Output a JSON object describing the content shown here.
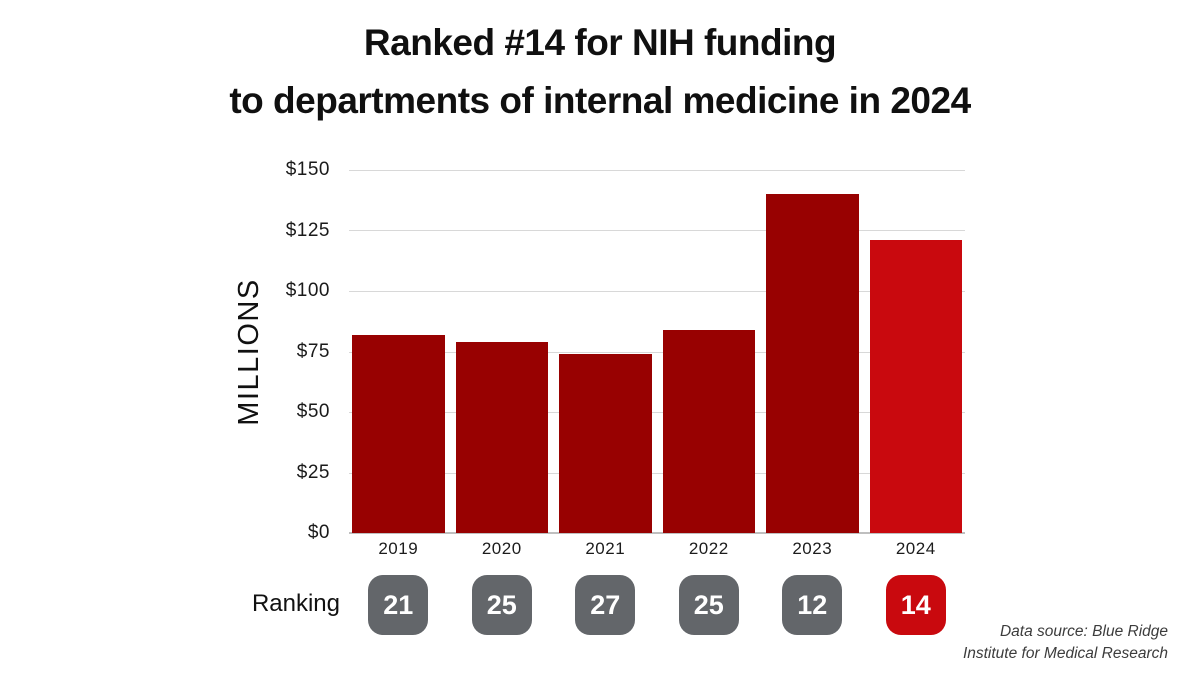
{
  "title": {
    "line1": "Ranked #14 for NIH funding",
    "line2": "to departments of internal medicine in 2024"
  },
  "chart_data": {
    "type": "bar",
    "categories": [
      "2019",
      "2020",
      "2021",
      "2022",
      "2023",
      "2024"
    ],
    "values": [
      82,
      79,
      74,
      84,
      140,
      121
    ],
    "rankings": [
      "21",
      "25",
      "27",
      "25",
      "12",
      "14"
    ],
    "ylabel": "MILLIONS",
    "y_ticks": [
      "$150",
      "$125",
      "$100",
      "$75",
      "$50",
      "$25",
      "$0"
    ],
    "ylim": [
      0,
      150
    ],
    "grid": true,
    "legend": "none",
    "highlight_index": 5,
    "colors": {
      "bar": "#980101",
      "bar_highlight": "#C9090E",
      "badge": "#63666A",
      "badge_highlight": "#C9090E",
      "gridline": "#D8D8D8",
      "axis_line": "#BFBFBF"
    }
  },
  "ranking_row": {
    "label": "Ranking"
  },
  "source": {
    "line1": "Data source: Blue Ridge",
    "line2": "Institute for Medical Research"
  }
}
